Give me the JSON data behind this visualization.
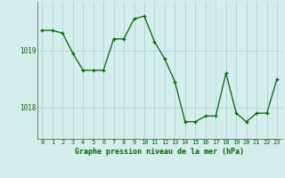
{
  "x": [
    0,
    1,
    2,
    3,
    4,
    5,
    6,
    7,
    8,
    9,
    10,
    11,
    12,
    13,
    14,
    15,
    16,
    17,
    18,
    19,
    20,
    21,
    22,
    23
  ],
  "y": [
    1019.35,
    1019.35,
    1019.3,
    1018.95,
    1018.65,
    1018.65,
    1018.65,
    1019.2,
    1019.2,
    1019.55,
    1019.6,
    1019.15,
    1018.85,
    1018.45,
    1017.75,
    1017.75,
    1017.85,
    1017.85,
    1018.6,
    1017.9,
    1017.75,
    1017.9,
    1017.9,
    1018.5
  ],
  "ylim": [
    1017.45,
    1019.85
  ],
  "yticks": [
    1018,
    1019
  ],
  "xticks": [
    0,
    1,
    2,
    3,
    4,
    5,
    6,
    7,
    8,
    9,
    10,
    11,
    12,
    13,
    14,
    15,
    16,
    17,
    18,
    19,
    20,
    21,
    22,
    23
  ],
  "xlabel": "Graphe pression niveau de la mer (hPa)",
  "line_color": "#006600",
  "marker_color": "#006600",
  "bg_color": "#d4eeee",
  "grid_color": "#aad4d4",
  "tick_color": "#006600"
}
